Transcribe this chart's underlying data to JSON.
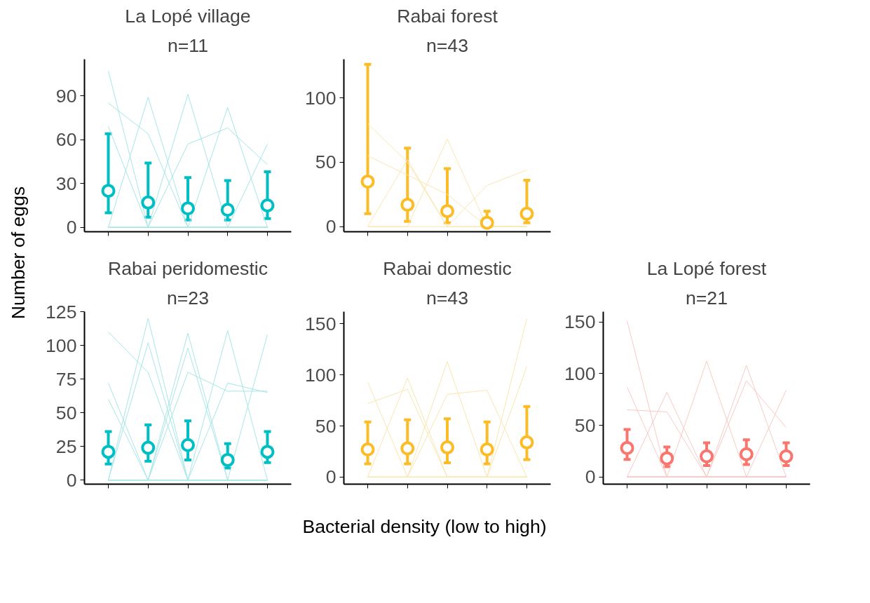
{
  "chart_data": [
    {
      "type": "line",
      "title": "La Lopé village",
      "subtitle": "n=11",
      "ylabel": "Number of eggs",
      "categories": [
        null,
        null,
        null,
        null,
        null
      ],
      "ylim": [
        -3,
        115
      ],
      "yticks": [
        0,
        30,
        60,
        90
      ],
      "grid": false,
      "tick_labels": "y",
      "series": [
        {
          "color": "#a6e6e7",
          "values": [
            107,
            0,
            0,
            0,
            0
          ]
        },
        {
          "color": "#a6e6e7",
          "values": [
            85,
            64,
            0,
            0,
            0
          ]
        },
        {
          "color": "#a6e6e7",
          "values": [
            69,
            0,
            0,
            0,
            0
          ]
        },
        {
          "color": "#a6e6e7",
          "values": [
            0,
            89,
            0,
            0,
            0
          ]
        },
        {
          "color": "#a6e6e7",
          "values": [
            0,
            0,
            91,
            0,
            0
          ]
        },
        {
          "color": "#a6e6e7",
          "values": [
            0,
            0,
            57,
            68,
            43
          ]
        },
        {
          "color": "#a6e6e7",
          "values": [
            0,
            0,
            0,
            82,
            0
          ]
        },
        {
          "color": "#a6e6e7",
          "values": [
            0,
            0,
            0,
            0,
            57
          ]
        },
        {
          "type": "scatter",
          "marker": "circle",
          "color": "#00bfc4",
          "values": [
            25,
            17,
            13,
            12,
            15
          ],
          "errors": [
            [
              10,
              64
            ],
            [
              7,
              44
            ],
            [
              5,
              34
            ],
            [
              5,
              32
            ],
            [
              6,
              38
            ]
          ]
        }
      ]
    },
    {
      "type": "line",
      "title": "Rabai forest",
      "subtitle": "n=43",
      "categories": [
        null,
        null,
        null,
        null,
        null
      ],
      "ylim": [
        -4,
        130
      ],
      "yticks": [
        0,
        50,
        100
      ],
      "grid": false,
      "tick_labels": "y",
      "series": [
        {
          "color": "#fbe6b0",
          "values": [
            80,
            50,
            0,
            0,
            0
          ]
        },
        {
          "color": "#fbe6b0",
          "values": [
            55,
            40,
            25,
            0,
            0
          ]
        },
        {
          "color": "#fbe6b0",
          "values": [
            0,
            52,
            0,
            0,
            0
          ]
        },
        {
          "color": "#fbe6b0",
          "values": [
            0,
            0,
            68,
            0,
            0
          ]
        },
        {
          "color": "#fbe6b0",
          "values": [
            0,
            0,
            0,
            32,
            44
          ]
        },
        {
          "type": "scatter",
          "marker": "circle",
          "color": "#fbbc26",
          "values": [
            35,
            17,
            12,
            3,
            10
          ],
          "errors": [
            [
              10,
              126
            ],
            [
              4,
              61
            ],
            [
              3,
              45
            ],
            [
              0,
              12
            ],
            [
              3,
              36
            ]
          ]
        }
      ]
    },
    {
      "type": "line",
      "title": "Rabai peridomestic",
      "subtitle": "n=23",
      "categories": [
        null,
        null,
        null,
        null,
        null
      ],
      "ylim": [
        -3,
        125
      ],
      "yticks": [
        0,
        25,
        50,
        75,
        100,
        125
      ],
      "grid": false,
      "tick_labels": "y",
      "series": [
        {
          "color": "#a6e6e7",
          "values": [
            110,
            80,
            0,
            0,
            0
          ]
        },
        {
          "color": "#a6e6e7",
          "values": [
            72,
            0,
            98,
            0,
            0
          ]
        },
        {
          "color": "#a6e6e7",
          "values": [
            60,
            0,
            0,
            0,
            0
          ]
        },
        {
          "color": "#a6e6e7",
          "values": [
            0,
            120,
            0,
            0,
            0
          ]
        },
        {
          "color": "#a6e6e7",
          "values": [
            0,
            102,
            0,
            0,
            0
          ]
        },
        {
          "color": "#a6e6e7",
          "values": [
            0,
            0,
            109,
            0,
            0
          ]
        },
        {
          "color": "#a6e6e7",
          "values": [
            0,
            0,
            80,
            66,
            66
          ]
        },
        {
          "color": "#a6e6e7",
          "values": [
            0,
            0,
            0,
            111,
            0
          ]
        },
        {
          "color": "#a6e6e7",
          "values": [
            0,
            0,
            0,
            72,
            65
          ]
        },
        {
          "color": "#a6e6e7",
          "values": [
            0,
            0,
            0,
            0,
            108
          ]
        },
        {
          "type": "scatter",
          "marker": "circle",
          "color": "#00bfc4",
          "values": [
            21,
            24,
            26,
            15,
            21
          ],
          "errors": [
            [
              12,
              36
            ],
            [
              14,
              41
            ],
            [
              15,
              44
            ],
            [
              9,
              27
            ],
            [
              13,
              36
            ]
          ]
        }
      ]
    },
    {
      "type": "line",
      "title": "Rabai domestic",
      "subtitle": "n=43",
      "xlabel": "Bacterial density (low to high)",
      "categories": [
        null,
        null,
        null,
        null,
        null
      ],
      "ylim": [
        -7,
        162
      ],
      "yticks": [
        0,
        50,
        100,
        150
      ],
      "grid": false,
      "tick_labels": "y",
      "series": [
        {
          "color": "#fbe6b0",
          "values": [
            93,
            0,
            0,
            0,
            0
          ]
        },
        {
          "color": "#fbe6b0",
          "values": [
            72,
            86,
            0,
            0,
            0
          ]
        },
        {
          "color": "#fbe6b0",
          "values": [
            0,
            97,
            0,
            0,
            0
          ]
        },
        {
          "color": "#fbe6b0",
          "values": [
            0,
            0,
            113,
            0,
            0
          ]
        },
        {
          "color": "#fbe6b0",
          "values": [
            0,
            0,
            81,
            85,
            0
          ]
        },
        {
          "color": "#fbe6b0",
          "values": [
            0,
            0,
            0,
            0,
            155
          ]
        },
        {
          "color": "#fbe6b0",
          "values": [
            0,
            0,
            0,
            0,
            108
          ]
        },
        {
          "type": "scatter",
          "marker": "circle",
          "color": "#fbbc26",
          "values": [
            27,
            28,
            29,
            27,
            34
          ],
          "errors": [
            [
              13,
              54
            ],
            [
              13,
              56
            ],
            [
              14,
              57
            ],
            [
              13,
              54
            ],
            [
              17,
              69
            ]
          ]
        }
      ]
    },
    {
      "type": "line",
      "title": "La Lopé forest",
      "subtitle": "n=21",
      "categories": [
        null,
        null,
        null,
        null,
        null
      ],
      "ylim": [
        -7,
        160
      ],
      "yticks": [
        0,
        50,
        100,
        150
      ],
      "grid": false,
      "tick_labels": "y",
      "series": [
        {
          "color": "#f9c9c5",
          "values": [
            151,
            0,
            0,
            0,
            0
          ]
        },
        {
          "color": "#f9c9c5",
          "values": [
            87,
            0,
            0,
            0,
            0
          ]
        },
        {
          "color": "#f9c9c5",
          "values": [
            65,
            63,
            0,
            0,
            0
          ]
        },
        {
          "color": "#f9c9c5",
          "values": [
            0,
            82,
            0,
            0,
            0
          ]
        },
        {
          "color": "#f9c9c5",
          "values": [
            0,
            0,
            112,
            0,
            0
          ]
        },
        {
          "color": "#f9c9c5",
          "values": [
            0,
            0,
            0,
            108,
            0
          ]
        },
        {
          "color": "#f9c9c5",
          "values": [
            0,
            0,
            0,
            93,
            48
          ]
        },
        {
          "color": "#f9c9c5",
          "values": [
            0,
            0,
            0,
            0,
            84
          ]
        },
        {
          "type": "scatter",
          "marker": "circle",
          "color": "#f8766d",
          "values": [
            28,
            18,
            20,
            22,
            20
          ],
          "errors": [
            [
              17,
              46
            ],
            [
              10,
              29
            ],
            [
              11,
              33
            ],
            [
              12,
              36
            ],
            [
              11,
              33
            ]
          ]
        }
      ]
    }
  ]
}
